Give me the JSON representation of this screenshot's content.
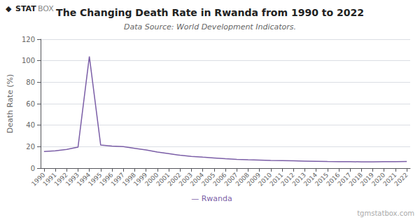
{
  "chart_data": {
    "type": "line",
    "title": "The Changing Death Rate in Rwanda from 1990 to 2022",
    "subtitle": "Data Source: World Development Indicators.",
    "ylabel": "Death Rate (%)",
    "annotations": [
      "◆",
      "STAT",
      "BOX",
      "tgmstatbox.com"
    ],
    "x": [
      1990,
      1991,
      1992,
      1993,
      1994,
      1995,
      1996,
      1997,
      1998,
      1999,
      2000,
      2001,
      2002,
      2003,
      2004,
      2005,
      2006,
      2007,
      2008,
      2009,
      2010,
      2011,
      2012,
      2013,
      2014,
      2015,
      2016,
      2017,
      2018,
      2019,
      2020,
      2021,
      2022
    ],
    "series": [
      {
        "name": "— Rwanda",
        "color": "#7B5EA7",
        "values": [
          15.5,
          16.2,
          17.5,
          19.5,
          104.0,
          21.5,
          20.5,
          20.0,
          18.5,
          17.0,
          15.0,
          13.5,
          12.0,
          11.0,
          10.2,
          9.5,
          8.8,
          8.2,
          7.8,
          7.5,
          7.2,
          7.0,
          6.8,
          6.6,
          6.4,
          6.2,
          6.1,
          6.0,
          5.9,
          5.9,
          6.0,
          6.1,
          6.2
        ]
      }
    ],
    "xlim": [
      1989.7,
      2022.3
    ],
    "xticks": [
      1990,
      1991,
      1992,
      1993,
      1994,
      1995,
      1996,
      1997,
      1998,
      1999,
      2000,
      2001,
      2002,
      2003,
      2004,
      2005,
      2006,
      2007,
      2008,
      2009,
      2010,
      2011,
      2012,
      2013,
      2014,
      2015,
      2016,
      2017,
      2018,
      2019,
      2020,
      2021,
      2022
    ],
    "ylim": [
      0,
      120
    ],
    "yticks": [
      0,
      20,
      40,
      60,
      80,
      100,
      120
    ],
    "grid": true,
    "legend": "bottom"
  }
}
